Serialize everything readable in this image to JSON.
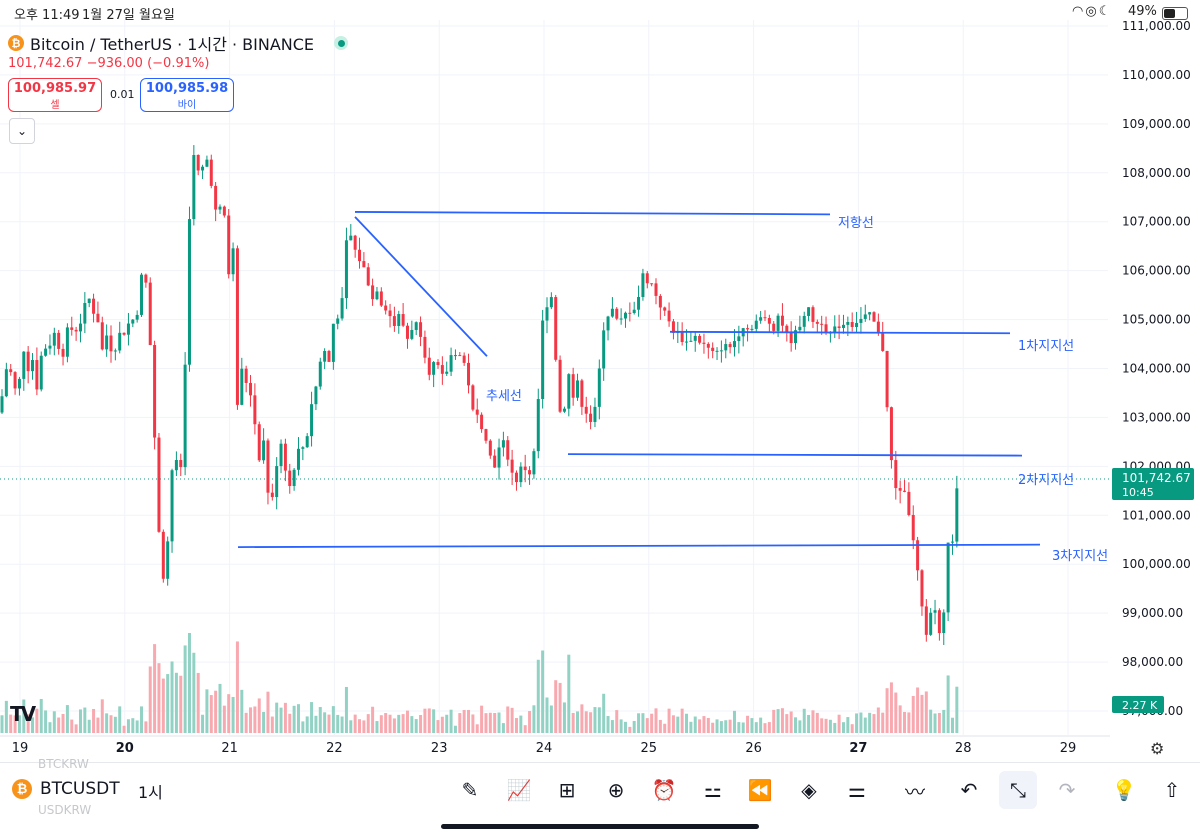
{
  "status_bar": {
    "time": "오후 11:49",
    "date": "1월 27일 월요일",
    "icons": [
      "wifi-icon",
      "location-icon",
      "moon-icon"
    ],
    "battery": "49%"
  },
  "header": {
    "title": "Bitcoin / TetherUS · 1시간 · BINANCE",
    "price_line": "101,742.67  −936.00 (−0.91%)",
    "sell_price": "100,985.97",
    "sell_label": "셀",
    "spread": "0.01",
    "buy_price": "100,985.98",
    "buy_label": "바이",
    "collapse_glyph": "⌄"
  },
  "chart_data": {
    "type": "candlestick",
    "title": "",
    "timeframe": "1시간",
    "ylim": [
      97000,
      111000
    ],
    "y_ticks": [
      "111,000.00",
      "110,000.00",
      "109,000.00",
      "108,000.00",
      "107,000.00",
      "106,000.00",
      "105,000.00",
      "104,000.00",
      "103,000.00",
      "102,000.00",
      "101,000.00",
      "100,000.00",
      "99,000.00",
      "98,000.00",
      "97,000.00"
    ],
    "x_ticks": [
      "19",
      "20",
      "21",
      "22",
      "23",
      "24",
      "25",
      "26",
      "27",
      "28",
      "29"
    ],
    "colors": {
      "up": "#089981",
      "down": "#f23645",
      "drawing": "#2962ff",
      "up_vol": "#92d2c4",
      "down_vol": "#f7a9af"
    },
    "path_points": [
      [
        0,
        103100
      ],
      [
        5,
        103500
      ],
      [
        10,
        104200
      ],
      [
        15,
        103700
      ],
      [
        20,
        103400
      ],
      [
        25,
        104500
      ],
      [
        30,
        104000
      ],
      [
        35,
        104200
      ],
      [
        40,
        103500
      ],
      [
        45,
        104600
      ],
      [
        50,
        104300
      ],
      [
        55,
        104800
      ],
      [
        60,
        104500
      ],
      [
        65,
        104300
      ],
      [
        70,
        104800
      ],
      [
        75,
        104800
      ],
      [
        80,
        104800
      ],
      [
        85,
        105100
      ],
      [
        90,
        105500
      ],
      [
        95,
        105200
      ],
      [
        100,
        105000
      ],
      [
        105,
        104300
      ],
      [
        110,
        104800
      ],
      [
        115,
        104200
      ],
      [
        120,
        104700
      ],
      [
        125,
        104700
      ],
      [
        130,
        104900
      ],
      [
        135,
        105000
      ],
      [
        140,
        105200
      ],
      [
        145,
        106100
      ],
      [
        150,
        105500
      ],
      [
        155,
        103400
      ],
      [
        160,
        101000
      ],
      [
        165,
        99700
      ],
      [
        170,
        100500
      ],
      [
        175,
        102200
      ],
      [
        180,
        102000
      ],
      [
        185,
        102000
      ],
      [
        190,
        106500
      ],
      [
        195,
        108400
      ],
      [
        200,
        108000
      ],
      [
        205,
        108100
      ],
      [
        210,
        108300
      ],
      [
        215,
        107600
      ],
      [
        220,
        106900
      ],
      [
        225,
        107700
      ],
      [
        230,
        105800
      ],
      [
        235,
        106600
      ],
      [
        240,
        103000
      ],
      [
        245,
        104200
      ],
      [
        250,
        103500
      ],
      [
        255,
        103500
      ],
      [
        260,
        102000
      ],
      [
        265,
        102700
      ],
      [
        270,
        101500
      ],
      [
        275,
        101300
      ],
      [
        280,
        102300
      ],
      [
        285,
        102600
      ],
      [
        290,
        101400
      ],
      [
        295,
        101900
      ],
      [
        300,
        102300
      ],
      [
        305,
        102400
      ],
      [
        310,
        102700
      ],
      [
        315,
        103500
      ],
      [
        320,
        103700
      ],
      [
        325,
        104600
      ],
      [
        330,
        103900
      ],
      [
        335,
        104900
      ],
      [
        340,
        105100
      ],
      [
        345,
        105400
      ],
      [
        350,
        107000
      ],
      [
        355,
        106500
      ],
      [
        360,
        106300
      ],
      [
        365,
        106100
      ],
      [
        370,
        105800
      ],
      [
        375,
        105400
      ],
      [
        380,
        105700
      ],
      [
        385,
        105200
      ],
      [
        390,
        105300
      ],
      [
        395,
        104800
      ],
      [
        400,
        105100
      ],
      [
        405,
        104900
      ],
      [
        410,
        104600
      ],
      [
        415,
        104900
      ],
      [
        420,
        104900
      ],
      [
        425,
        104600
      ],
      [
        430,
        103900
      ],
      [
        435,
        104100
      ],
      [
        440,
        104000
      ],
      [
        445,
        103800
      ],
      [
        450,
        104000
      ],
      [
        455,
        104400
      ],
      [
        460,
        104300
      ],
      [
        465,
        104200
      ],
      [
        470,
        103800
      ],
      [
        475,
        103100
      ],
      [
        480,
        103000
      ],
      [
        485,
        102800
      ],
      [
        490,
        102500
      ],
      [
        495,
        101900
      ],
      [
        500,
        102300
      ],
      [
        505,
        102500
      ],
      [
        510,
        102200
      ],
      [
        515,
        101800
      ],
      [
        520,
        101700
      ],
      [
        525,
        102100
      ],
      [
        530,
        101800
      ],
      [
        535,
        102000
      ],
      [
        540,
        103200
      ],
      [
        545,
        105000
      ],
      [
        550,
        105400
      ],
      [
        555,
        105500
      ],
      [
        560,
        103300
      ],
      [
        565,
        102900
      ],
      [
        570,
        104000
      ],
      [
        575,
        103400
      ],
      [
        580,
        103700
      ],
      [
        585,
        103200
      ],
      [
        590,
        103100
      ],
      [
        595,
        102800
      ],
      [
        600,
        103600
      ],
      [
        605,
        104800
      ],
      [
        610,
        105100
      ],
      [
        615,
        105200
      ],
      [
        620,
        104900
      ],
      [
        625,
        105000
      ],
      [
        630,
        105200
      ],
      [
        635,
        105200
      ],
      [
        640,
        105400
      ],
      [
        645,
        105900
      ],
      [
        650,
        105800
      ],
      [
        655,
        105700
      ],
      [
        660,
        105400
      ],
      [
        665,
        105200
      ],
      [
        670,
        105000
      ],
      [
        675,
        104800
      ],
      [
        680,
        104700
      ],
      [
        685,
        104600
      ],
      [
        690,
        104500
      ],
      [
        695,
        104700
      ],
      [
        700,
        104600
      ],
      [
        705,
        104500
      ],
      [
        710,
        104400
      ],
      [
        715,
        104300
      ],
      [
        720,
        104300
      ],
      [
        725,
        104500
      ],
      [
        730,
        104400
      ],
      [
        735,
        104500
      ],
      [
        740,
        104700
      ],
      [
        745,
        104900
      ],
      [
        750,
        104800
      ],
      [
        755,
        104900
      ],
      [
        760,
        105000
      ],
      [
        765,
        105000
      ],
      [
        770,
        105000
      ],
      [
        775,
        104800
      ],
      [
        780,
        105100
      ],
      [
        785,
        104900
      ],
      [
        790,
        104600
      ],
      [
        795,
        104600
      ],
      [
        800,
        104800
      ],
      [
        805,
        105100
      ],
      [
        810,
        105200
      ],
      [
        815,
        105000
      ],
      [
        820,
        104900
      ],
      [
        825,
        105000
      ],
      [
        830,
        104700
      ],
      [
        835,
        104700
      ],
      [
        840,
        104900
      ],
      [
        845,
        104900
      ],
      [
        850,
        105000
      ],
      [
        855,
        104900
      ],
      [
        860,
        105000
      ],
      [
        865,
        105000
      ],
      [
        870,
        105100
      ],
      [
        875,
        105000
      ],
      [
        880,
        104700
      ],
      [
        885,
        104400
      ],
      [
        890,
        103000
      ],
      [
        895,
        101700
      ],
      [
        900,
        101500
      ],
      [
        905,
        101600
      ],
      [
        910,
        101200
      ],
      [
        915,
        100500
      ],
      [
        920,
        99800
      ],
      [
        925,
        98900
      ],
      [
        930,
        98500
      ],
      [
        935,
        99400
      ],
      [
        940,
        98600
      ],
      [
        945,
        98600
      ],
      [
        950,
        100500
      ],
      [
        955,
        100400
      ],
      [
        960,
        101742.67
      ]
    ],
    "current_price": "101,742.67",
    "countdown": "10:45",
    "volume_label": "2.27 K",
    "drawings": [
      {
        "name": "resistance",
        "label": "저항선",
        "from": [
          355,
          107200
        ],
        "to": [
          830,
          107150
        ]
      },
      {
        "name": "trendline",
        "label": "추세선",
        "from": [
          355,
          107100
        ],
        "to": [
          487,
          104250
        ]
      },
      {
        "name": "support-1",
        "label": "1차지지선",
        "from": [
          670,
          104750
        ],
        "to": [
          1010,
          104720
        ]
      },
      {
        "name": "support-2",
        "label": "2차지지선",
        "from": [
          568,
          102250
        ],
        "to": [
          1022,
          102220
        ]
      },
      {
        "name": "support-3",
        "label": "3차지지선",
        "from": [
          238,
          100350
        ],
        "to": [
          1040,
          100400
        ]
      }
    ]
  },
  "watermark": {
    "logo": "TV",
    "ghost_top": "BTCKRW",
    "ghost_bottom": "USDKRW"
  },
  "bottom_bar": {
    "symbol": "BTCUSDT",
    "timeframe": "1시",
    "tools": [
      {
        "name": "drawing-tool-button",
        "glyph": "✎"
      },
      {
        "name": "indicators-button",
        "glyph": "📈"
      },
      {
        "name": "layout-button",
        "glyph": "⊞"
      },
      {
        "name": "add-button",
        "glyph": "⊕"
      },
      {
        "name": "alert-button",
        "glyph": "⏰"
      },
      {
        "name": "chart-type-button",
        "glyph": "⚍"
      },
      {
        "name": "replay-button",
        "glyph": "⏪"
      },
      {
        "name": "layers-button",
        "glyph": "◈"
      },
      {
        "name": "settings-sliders-button",
        "glyph": "⚌"
      },
      {
        "name": "trend-tool-button",
        "glyph": "〰"
      },
      {
        "name": "undo-button",
        "glyph": "↶"
      },
      {
        "name": "fullscreen-exit-button",
        "glyph": "⤡"
      },
      {
        "name": "redo-button",
        "glyph": "↷"
      },
      {
        "name": "ideas-button",
        "glyph": "💡"
      },
      {
        "name": "share-button",
        "glyph": "⇧"
      }
    ]
  }
}
